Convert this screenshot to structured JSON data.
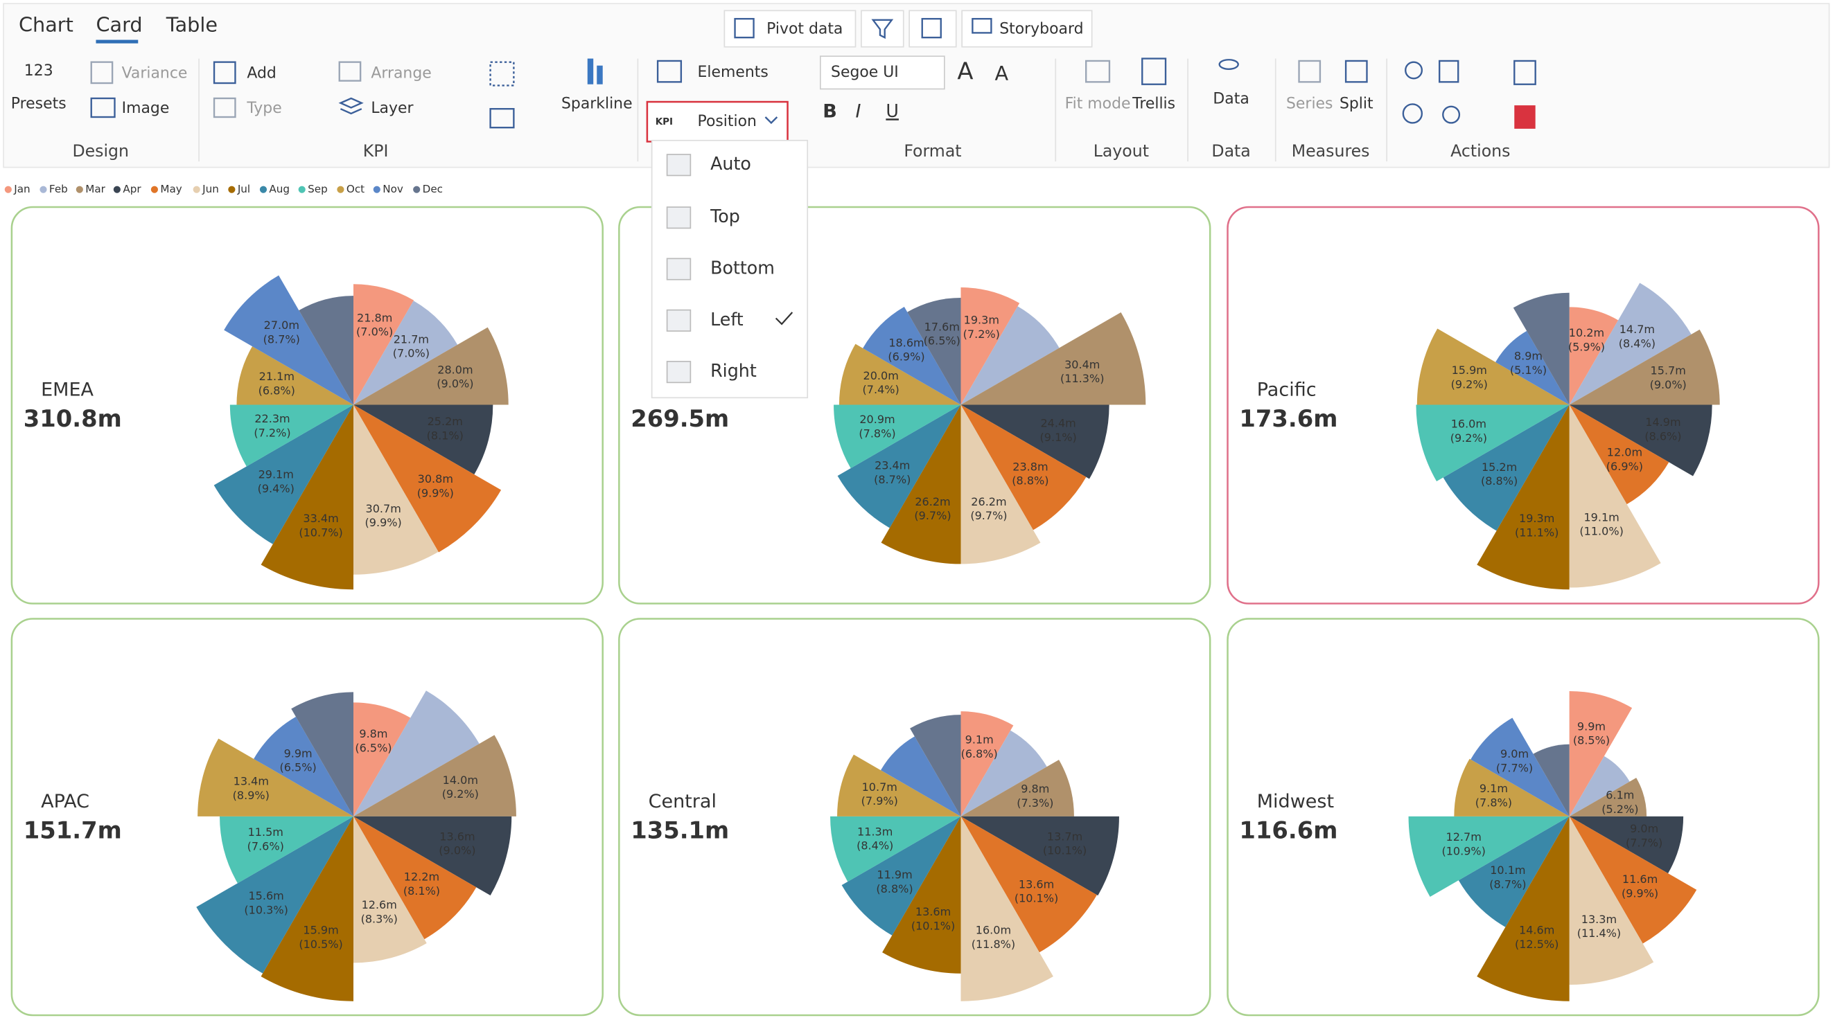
{
  "tabs": [
    "Chart",
    "Card",
    "Table"
  ],
  "toolbar": [
    "Pivot data",
    "Storyboard"
  ],
  "ribbon": {
    "presets_icon": "123",
    "presets": "Presets",
    "variance": "Variance",
    "image": "Image",
    "add": "Add",
    "type": "Type",
    "arrange": "Arrange",
    "layer": "Layer",
    "sparkline": "Sparkline",
    "elements": "Elements",
    "position": "Position",
    "font": "Segoe UI",
    "fit_mode": "Fit mode",
    "trellis": "Trellis",
    "data": "Data",
    "series": "Series",
    "split": "Split",
    "groups": [
      "Design",
      "KPI",
      "Format",
      "Layout",
      "Data",
      "Measures",
      "Actions"
    ]
  },
  "position_menu": {
    "items": [
      "Auto",
      "Top",
      "Bottom",
      "Left",
      "Right"
    ],
    "checked": "Left"
  },
  "legend": {
    "months": [
      "Jan",
      "Feb",
      "Mar",
      "Apr",
      "May",
      "Jun",
      "Jul",
      "Aug",
      "Sep",
      "Oct",
      "Nov",
      "Dec"
    ],
    "colors": [
      "#f4987e",
      "#a9b8d6",
      "#b0916b",
      "#3a4553",
      "#e07528",
      "#e6cfb0",
      "#a56b00",
      "#3a88a8",
      "#4fc4b4",
      "#c8a048",
      "#5b87c8",
      "#66758e"
    ]
  },
  "cards": [
    {
      "title": "EMEA",
      "total": "310.8m",
      "values": [
        21.8,
        21.7,
        28.0,
        25.2,
        30.8,
        30.7,
        33.4,
        29.1,
        22.3,
        21.1,
        27.0,
        19.7
      ],
      "value_labels": [
        "21.8m",
        "21.7m",
        "28.0m",
        "25.2m",
        "30.8m",
        "30.7m",
        "33.4m",
        "29.1m",
        "22.3m",
        "21.1m",
        "27.0m",
        null
      ],
      "pct_labels": [
        "(7.0%)",
        "(7.0%)",
        "(9.0%)",
        "(8.1%)",
        "(9.9%)",
        "(9.9%)",
        "(10.7%)",
        "(9.4%)",
        "(7.2%)",
        "(6.8%)",
        "(8.7%)",
        null
      ]
    },
    {
      "total": "269.5m",
      "values": [
        19.3,
        18.7,
        30.4,
        24.4,
        23.8,
        26.2,
        26.2,
        23.4,
        20.9,
        20.0,
        18.6,
        17.6
      ],
      "value_labels": [
        "19.3m",
        null,
        "30.4m",
        "24.4m",
        "23.8m",
        "26.2m",
        "26.2m",
        "23.4m",
        "20.9m",
        "20.0m",
        "18.6m",
        "17.6m"
      ],
      "pct_labels": [
        "(7.2%)",
        null,
        "(11.3%)",
        "(9.1%)",
        "(8.8%)",
        "(9.7%)",
        "(9.7%)",
        "(8.7%)",
        "(7.8%)",
        "(7.4%)",
        "(6.9%)",
        "(6.5%)"
      ]
    },
    {
      "title": "Pacific",
      "total": "173.6m",
      "highlight": true,
      "values": [
        10.2,
        14.7,
        15.7,
        14.9,
        12.0,
        19.1,
        19.3,
        15.2,
        16.0,
        15.9,
        8.9,
        11.7
      ],
      "value_labels": [
        "10.2m",
        "14.7m",
        "15.7m",
        "14.9m",
        "12.0m",
        "19.1m",
        "19.3m",
        "15.2m",
        "16.0m",
        "15.9m",
        "8.9m",
        null
      ],
      "pct_labels": [
        "(5.9%)",
        "(8.4%)",
        "(9.0%)",
        "(8.6%)",
        "(6.9%)",
        "(11.0%)",
        "(11.1%)",
        "(8.8%)",
        "(9.2%)",
        "(9.2%)",
        "(5.1%)",
        null
      ]
    },
    {
      "title": "APAC",
      "total": "151.7m",
      "values": [
        9.8,
        12.5,
        14.0,
        13.6,
        12.2,
        12.6,
        15.9,
        15.6,
        11.5,
        13.4,
        9.9,
        10.7
      ],
      "value_labels": [
        "9.8m",
        null,
        "14.0m",
        "13.6m",
        "12.2m",
        "12.6m",
        "15.9m",
        "15.6m",
        "11.5m",
        "13.4m",
        "9.9m",
        null
      ],
      "pct_labels": [
        "(6.5%)",
        null,
        "(9.2%)",
        "(9.0%)",
        "(8.1%)",
        "(8.3%)",
        "(10.5%)",
        "(10.3%)",
        "(7.6%)",
        "(8.9%)",
        "(6.5%)",
        null
      ]
    },
    {
      "title": "Central",
      "total": "135.1m",
      "values": [
        9.1,
        8.6,
        9.8,
        13.7,
        13.6,
        16.0,
        13.6,
        11.9,
        11.3,
        10.7,
        8.0,
        8.8
      ],
      "value_labels": [
        "9.1m",
        null,
        "9.8m",
        "13.7m",
        "13.6m",
        "16.0m",
        "13.6m",
        "11.9m",
        "11.3m",
        "10.7m",
        null,
        null
      ],
      "pct_labels": [
        "(6.8%)",
        null,
        "(7.3%)",
        "(10.1%)",
        "(10.1%)",
        "(11.8%)",
        "(10.1%)",
        "(8.8%)",
        "(8.4%)",
        "(7.9%)",
        null,
        null
      ]
    },
    {
      "title": "Midwest",
      "total": "116.6m",
      "values": [
        9.9,
        5.5,
        6.1,
        9.0,
        11.6,
        13.3,
        14.6,
        10.1,
        12.7,
        9.1,
        9.0,
        5.7
      ],
      "value_labels": [
        "9.9m",
        null,
        "6.1m",
        "9.0m",
        "11.6m",
        "13.3m",
        "14.6m",
        "10.1m",
        "12.7m",
        "9.1m",
        "9.0m",
        null
      ],
      "pct_labels": [
        "(8.5%)",
        null,
        "(5.2%)",
        "(7.7%)",
        "(9.9%)",
        "(11.4%)",
        "(12.5%)",
        "(8.7%)",
        "(10.9%)",
        "(7.8%)",
        "(7.7%)",
        null
      ]
    }
  ]
}
